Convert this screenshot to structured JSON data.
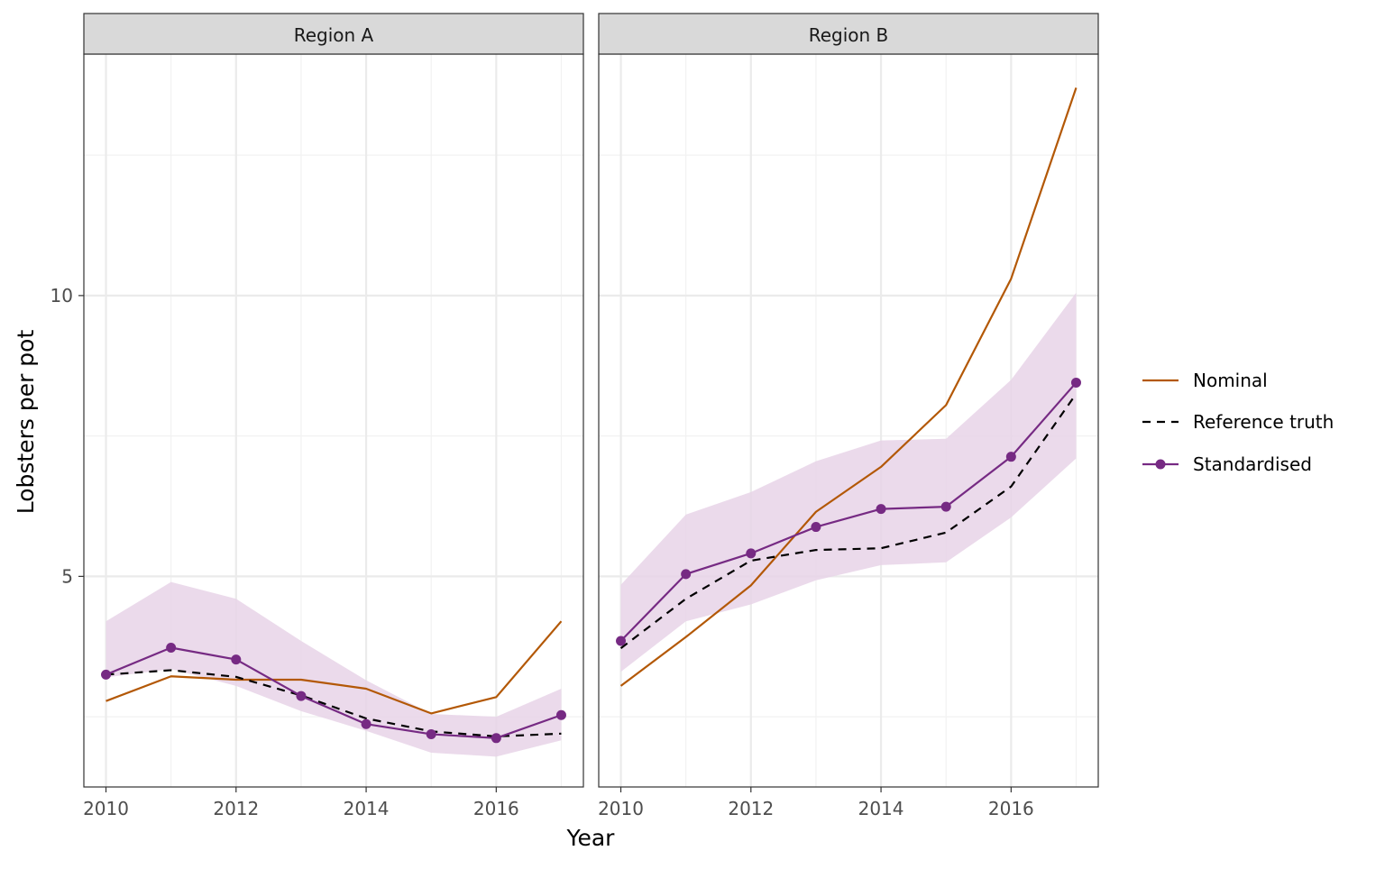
{
  "chart_data": {
    "type": "line",
    "xlabel": "Year",
    "ylabel": "Lobsters per pot",
    "x_ticks": [
      2010,
      2012,
      2014,
      2016
    ],
    "y_ticks": [
      5,
      10
    ],
    "xlim": [
      2009.66,
      2017.34
    ],
    "ylim": [
      1.25,
      14.3
    ],
    "grid": true,
    "legend_position": "right",
    "colors": {
      "nominal": "#b35806",
      "reference": "#000000",
      "standardised": "#762a83",
      "band": "#e7d4e8",
      "strip_bg": "#d9d9d9",
      "grid": "#ebebeb"
    },
    "legend": [
      {
        "key": "nominal",
        "label": "Nominal",
        "style": "solid"
      },
      {
        "key": "reference",
        "label": "Reference truth",
        "style": "dashed"
      },
      {
        "key": "standardised",
        "label": "Standardised",
        "style": "solid-point"
      }
    ],
    "years": [
      2010,
      2011,
      2012,
      2013,
      2014,
      2015,
      2016,
      2017
    ],
    "panels": [
      {
        "title": "Region A",
        "nominal": [
          2.78,
          3.22,
          3.16,
          3.16,
          3.0,
          2.56,
          2.85,
          4.2
        ],
        "reference": [
          3.25,
          3.33,
          3.21,
          2.88,
          2.47,
          2.24,
          2.15,
          2.2
        ],
        "standardised": [
          3.25,
          3.73,
          3.52,
          2.87,
          2.37,
          2.19,
          2.12,
          2.53
        ],
        "lower": [
          3.2,
          3.35,
          3.05,
          2.6,
          2.25,
          1.86,
          1.79,
          2.08
        ],
        "upper": [
          4.2,
          4.9,
          4.6,
          3.85,
          3.15,
          2.55,
          2.5,
          3.0
        ]
      },
      {
        "title": "Region B",
        "nominal": [
          3.05,
          3.92,
          4.84,
          6.15,
          6.95,
          8.05,
          10.3,
          13.7
        ],
        "reference": [
          3.72,
          4.6,
          5.28,
          5.47,
          5.5,
          5.78,
          6.6,
          8.25
        ],
        "standardised": [
          3.85,
          5.04,
          5.41,
          5.88,
          6.2,
          6.24,
          7.13,
          8.45
        ],
        "lower": [
          3.3,
          4.2,
          4.5,
          4.93,
          5.2,
          5.25,
          6.05,
          7.1
        ],
        "upper": [
          4.85,
          6.1,
          6.5,
          7.05,
          7.42,
          7.45,
          8.5,
          10.05
        ]
      }
    ]
  }
}
